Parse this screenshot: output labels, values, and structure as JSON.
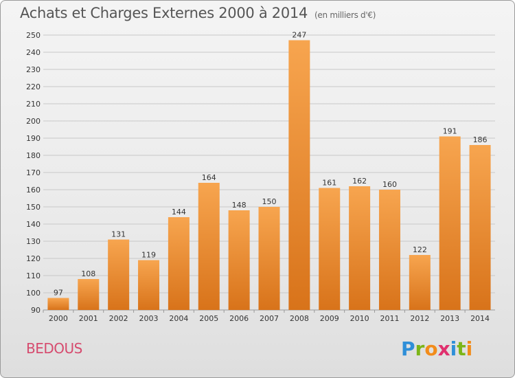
{
  "title": "Achats et Charges Externes 2000 à 2014",
  "subtitle": "(en milliers d'€)",
  "location": "BEDOUS",
  "logo_text": "Proxiti",
  "colors": {
    "bar_light": "#f7a54f",
    "bar_dark": "#d8731a",
    "grid": "#c8c8c8",
    "axis_text": "#333333",
    "title": "#555555",
    "location": "#d64b6e"
  },
  "chart_data": {
    "type": "bar",
    "categories": [
      "2000",
      "2001",
      "2002",
      "2003",
      "2004",
      "2005",
      "2006",
      "2007",
      "2008",
      "2009",
      "2010",
      "2011",
      "2012",
      "2013",
      "2014"
    ],
    "values": [
      97,
      108,
      131,
      119,
      144,
      164,
      148,
      150,
      247,
      161,
      162,
      160,
      122,
      191,
      186
    ],
    "ylim": [
      90,
      250
    ],
    "yticks": [
      90,
      100,
      110,
      120,
      130,
      140,
      150,
      160,
      170,
      180,
      190,
      200,
      210,
      220,
      230,
      240,
      250
    ],
    "grid": true,
    "data_labels": true
  }
}
